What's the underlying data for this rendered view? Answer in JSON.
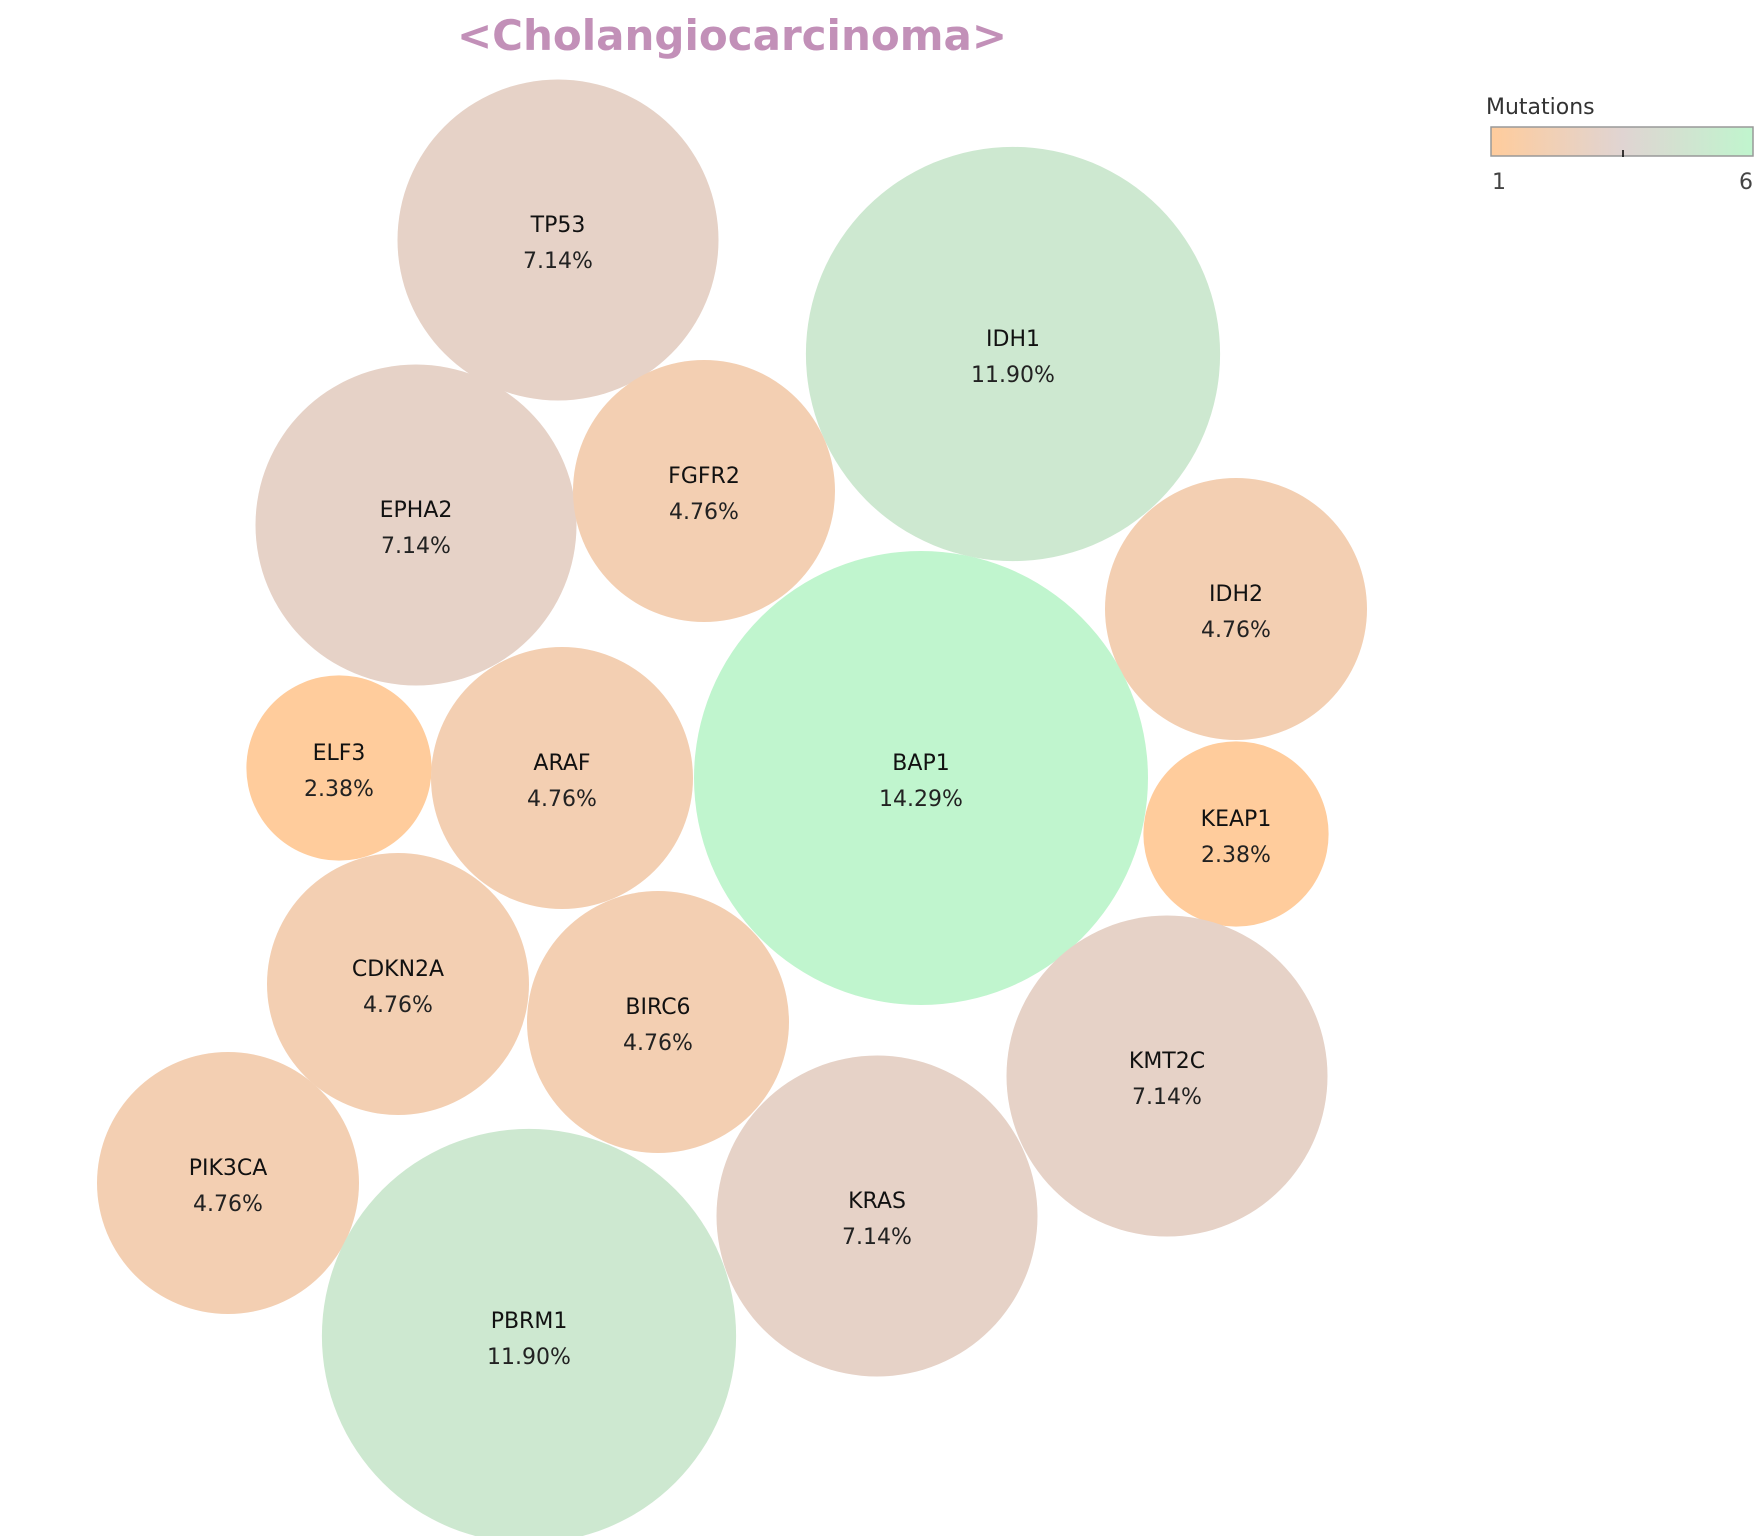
{
  "chart_data": {
    "type": "bubble",
    "title": "<Cholangiocarcinoma>",
    "title_color": "#c290b8",
    "legend": {
      "title": "Mutations",
      "min": 1,
      "max": 6,
      "min_label": "1",
      "max_label": "6",
      "color_low": "#ffcc9c",
      "color_mid": "#e0d4d2",
      "color_high": "#c0f5ce",
      "placement": "top-right"
    },
    "bubbles": [
      {
        "gene": "TP53",
        "pct_label": "7.14%",
        "percent": 7.14,
        "mutations": 3
      },
      {
        "gene": "IDH1",
        "pct_label": "11.90%",
        "percent": 11.9,
        "mutations": 5
      },
      {
        "gene": "EPHA2",
        "pct_label": "7.14%",
        "percent": 7.14,
        "mutations": 3
      },
      {
        "gene": "FGFR2",
        "pct_label": "4.76%",
        "percent": 4.76,
        "mutations": 2
      },
      {
        "gene": "IDH2",
        "pct_label": "4.76%",
        "percent": 4.76,
        "mutations": 2
      },
      {
        "gene": "ELF3",
        "pct_label": "2.38%",
        "percent": 2.38,
        "mutations": 1
      },
      {
        "gene": "ARAF",
        "pct_label": "4.76%",
        "percent": 4.76,
        "mutations": 2
      },
      {
        "gene": "BAP1",
        "pct_label": "14.29%",
        "percent": 14.29,
        "mutations": 6
      },
      {
        "gene": "KEAP1",
        "pct_label": "2.38%",
        "percent": 2.38,
        "mutations": 1
      },
      {
        "gene": "CDKN2A",
        "pct_label": "4.76%",
        "percent": 4.76,
        "mutations": 2
      },
      {
        "gene": "BIRC6",
        "pct_label": "4.76%",
        "percent": 4.76,
        "mutations": 2
      },
      {
        "gene": "KMT2C",
        "pct_label": "7.14%",
        "percent": 7.14,
        "mutations": 3
      },
      {
        "gene": "PIK3CA",
        "pct_label": "4.76%",
        "percent": 4.76,
        "mutations": 2
      },
      {
        "gene": "KRAS",
        "pct_label": "7.14%",
        "percent": 7.14,
        "mutations": 3
      },
      {
        "gene": "PBRM1",
        "pct_label": "11.90%",
        "percent": 11.9,
        "mutations": 5
      }
    ]
  }
}
